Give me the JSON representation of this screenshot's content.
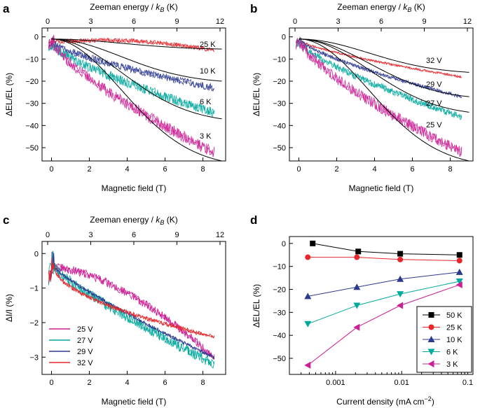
{
  "chart_data": [
    {
      "panel": "a",
      "type": "line",
      "xlabel": "Magnetic field (T)",
      "ylabel": "ΔEL/EL (%)",
      "top_xlabel": "Zeeman energy / ",
      "top_xlabel_var": "k",
      "top_xlabel_sub": "B",
      "top_xlabel_unit": " (K)",
      "xlim": [
        -0.5,
        9.2
      ],
      "ylim": [
        -56,
        4
      ],
      "xticks": [
        0,
        2,
        4,
        6,
        8
      ],
      "yticks": [
        0,
        -10,
        -20,
        -30,
        -40,
        -50
      ],
      "top_ticks": [
        0,
        3,
        6,
        9,
        12
      ],
      "series": [
        {
          "name": "25 K",
          "color": "#e8262b",
          "start": -2,
          "end": -6,
          "bump": 2.5,
          "noise": 1.0,
          "fit_end": -5.5
        },
        {
          "name": "10 K",
          "color": "#2b3990",
          "start": -3,
          "end": -23,
          "bump": 0,
          "noise": 1.6,
          "fit_end": -20
        },
        {
          "name": "6 K",
          "color": "#00a99d",
          "start": -4,
          "end": -34,
          "bump": 0,
          "noise": 2.2,
          "fit_end": -37
        },
        {
          "name": "3 K",
          "color": "#cc1f95",
          "start": -3,
          "end": -52,
          "bump": 0,
          "noise": 2.6,
          "fit_end": -56
        }
      ],
      "annotations": [
        "25 K",
        "10 K",
        "6 K",
        "3 K"
      ]
    },
    {
      "panel": "b",
      "type": "line",
      "xlabel": "Magnetic field (T)",
      "ylabel": "ΔEL/EL (%)",
      "top_xlabel": "Zeeman energy / ",
      "top_xlabel_var": "k",
      "top_xlabel_sub": "B",
      "top_xlabel_unit": " (K)",
      "xlim": [
        -0.5,
        9.2
      ],
      "ylim": [
        -56,
        4
      ],
      "xticks": [
        0,
        2,
        4,
        6,
        8
      ],
      "yticks": [
        0,
        -10,
        -20,
        -30,
        -40,
        -50
      ],
      "top_ticks": [
        0,
        3,
        6,
        9,
        12
      ],
      "series": [
        {
          "name": "32 V",
          "color": "#e8262b",
          "start": -2,
          "end": -18,
          "noise": 0.5,
          "fit_end": -16
        },
        {
          "name": "29 V",
          "color": "#2b3990",
          "start": -2,
          "end": -27,
          "noise": 0.8,
          "fit_end": -27
        },
        {
          "name": "27 V",
          "color": "#00a99d",
          "start": -3,
          "end": -36,
          "noise": 1.6,
          "fit_end": -34
        },
        {
          "name": "25 V",
          "color": "#cc1f95",
          "start": -3,
          "end": -52,
          "noise": 2.6,
          "fit_end": -56
        }
      ],
      "annotations": [
        "32 V",
        "29 V",
        "27 V",
        "25 V"
      ]
    },
    {
      "panel": "c",
      "type": "line",
      "xlabel": "Magnetic field (T)",
      "ylabel": "ΔI/I (%)",
      "top_xlabel": "Zeeman energy / ",
      "top_xlabel_var": "k",
      "top_xlabel_sub": "B",
      "top_xlabel_unit": " (K)",
      "xlim": [
        -0.5,
        9.2
      ],
      "ylim": [
        -3.5,
        0.35
      ],
      "xticks": [
        0,
        2,
        4,
        6,
        8
      ],
      "yticks": [
        0,
        -1,
        -2,
        -3
      ],
      "top_ticks": [
        0,
        3,
        6,
        9,
        12
      ],
      "series": [
        {
          "name": "25 V",
          "color": "#cc1f95",
          "end": -3.0,
          "noise": 0.12
        },
        {
          "name": "27 V",
          "color": "#00a99d",
          "end": -3.2,
          "noise": 0.15
        },
        {
          "name": "29 V",
          "color": "#2b3990",
          "end": -3.0,
          "noise": 0.05
        },
        {
          "name": "32 V",
          "color": "#e8262b",
          "end": -2.4,
          "noise": 0.06
        }
      ],
      "legend": [
        "25 V",
        "27 V",
        "29 V",
        "32 V"
      ]
    },
    {
      "panel": "d",
      "type": "line",
      "xscale": "log",
      "xlabel": "Current density (mA cm",
      "xlabel_sup": "−2",
      "xlabel_end": ")",
      "ylabel": "ΔEL/EL (%)",
      "xlim": [
        0.0002,
        0.12
      ],
      "ylim": [
        -57,
        3
      ],
      "xticks": [
        0.001,
        0.01,
        0.1
      ],
      "xtick_labels": [
        "0.001",
        "0.01",
        "0.1"
      ],
      "yticks": [
        0,
        -10,
        -20,
        -30,
        -40,
        -50
      ],
      "series": [
        {
          "name": "50 K",
          "color": "#000000",
          "marker": "square",
          "x": [
            0.00045,
            0.0022,
            0.0095,
            0.075
          ],
          "y": [
            0,
            -3.5,
            -4.5,
            -5
          ]
        },
        {
          "name": "25 K",
          "color": "#e8262b",
          "marker": "circle",
          "x": [
            0.00038,
            0.0021,
            0.0095,
            0.075
          ],
          "y": [
            -6,
            -6,
            -7,
            -7.5
          ]
        },
        {
          "name": "10 K",
          "color": "#2b3990",
          "marker": "triangle-up",
          "x": [
            0.00038,
            0.0021,
            0.0095,
            0.075
          ],
          "y": [
            -23,
            -19,
            -15.5,
            -12.5
          ]
        },
        {
          "name": "6 K",
          "color": "#00a99d",
          "marker": "triangle-down",
          "x": [
            0.00038,
            0.0021,
            0.0095,
            0.075
          ],
          "y": [
            -35,
            -27,
            -22,
            -16.5
          ]
        },
        {
          "name": "3 K",
          "color": "#cc1f95",
          "marker": "triangle-left",
          "x": [
            0.00038,
            0.0021,
            0.0095,
            0.075
          ],
          "y": [
            -53,
            -36.5,
            -27,
            -18
          ]
        }
      ],
      "legend_position": "bottom-right"
    }
  ]
}
